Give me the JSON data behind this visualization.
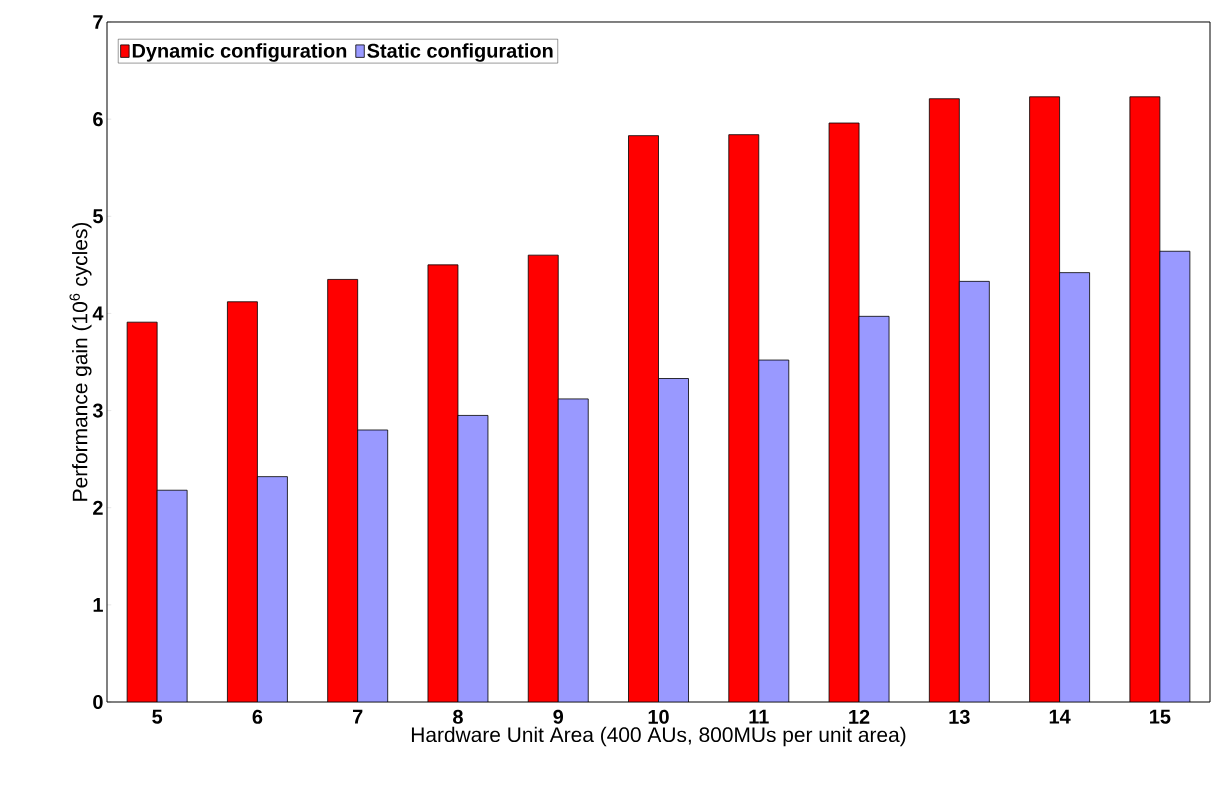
{
  "chart_data": {
    "type": "bar",
    "xlabel": "Hardware Unit Area (400 AUs, 800MUs per unit area)",
    "ylabel": "Performance gain (10$^{6}$ cycles)",
    "categories": [
      "5",
      "6",
      "7",
      "8",
      "9",
      "10",
      "11",
      "12",
      "13",
      "14",
      "15"
    ],
    "series": [
      {
        "name": "Dynamic configuration",
        "color": "#ff0000",
        "values": [
          3.91,
          4.12,
          4.35,
          4.5,
          4.6,
          5.83,
          5.84,
          5.96,
          6.21,
          6.23,
          6.23
        ]
      },
      {
        "name": "Static configuration",
        "color": "#9999ff",
        "values": [
          2.18,
          2.32,
          2.8,
          2.95,
          3.12,
          3.33,
          3.52,
          3.97,
          4.33,
          4.42,
          4.64
        ]
      }
    ],
    "ylim": [
      0,
      7
    ],
    "yticks": [
      0,
      1,
      2,
      3,
      4,
      5,
      6,
      7
    ],
    "grid": false,
    "legend": "top left"
  }
}
